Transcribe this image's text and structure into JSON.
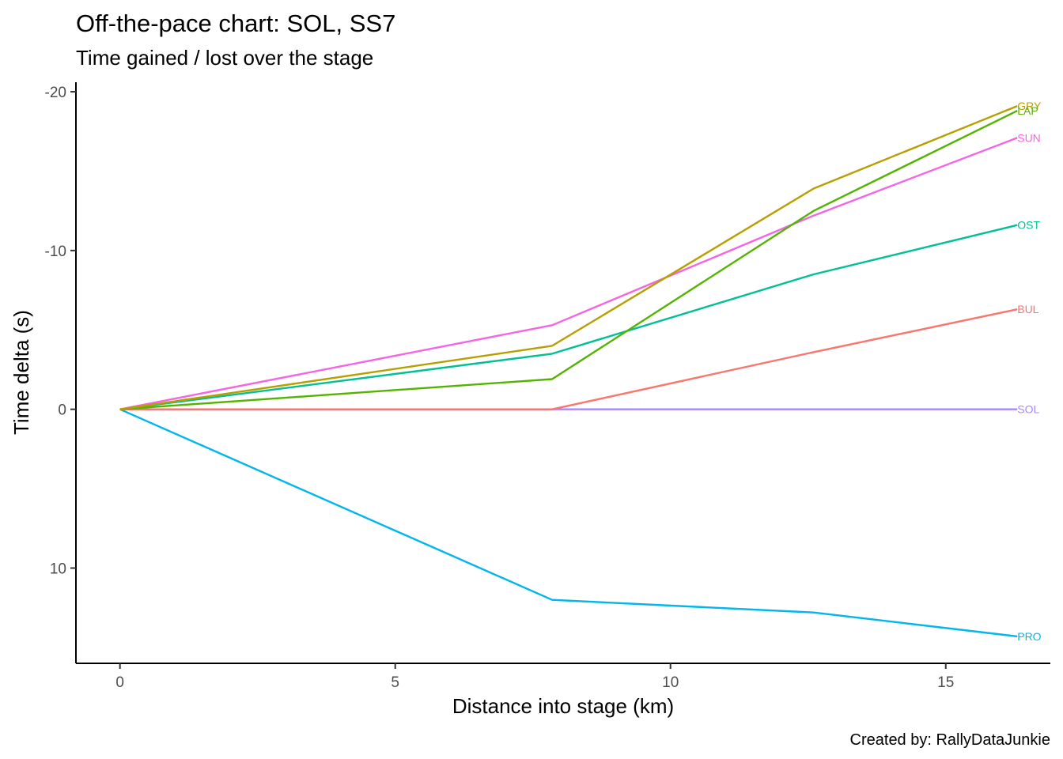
{
  "chart_data": {
    "type": "line",
    "title": "Off-the-pace chart: SOL, SS7",
    "subtitle": "Time gained / lost over the stage",
    "xlabel": "Distance into stage (km)",
    "ylabel": "Time delta (s)",
    "caption": "Created by: RallyDataJunkie",
    "xlim": [
      -0.8,
      16.9
    ],
    "ylim": [
      -20.6,
      16
    ],
    "y_reversed": true,
    "x_ticks": [
      0,
      5,
      10,
      15
    ],
    "x_tick_labels": [
      "0",
      "5",
      "10",
      "15"
    ],
    "y_ticks": [
      -20,
      -10,
      0,
      10
    ],
    "y_tick_labels": [
      "-20",
      "-10",
      "0",
      "10"
    ],
    "grid": false,
    "legend": "none (series labels at line ends)",
    "x": [
      0,
      7.85,
      12.6,
      16.3
    ],
    "series": [
      {
        "name": "GRY",
        "color": "#B79F00",
        "values": [
          0,
          -4.0,
          -13.9,
          -19.1
        ]
      },
      {
        "name": "LAP",
        "color": "#53B400",
        "values": [
          0,
          -1.9,
          -12.5,
          -18.8
        ]
      },
      {
        "name": "SUN",
        "color": "#F564E3",
        "values": [
          0,
          -5.3,
          -12.2,
          -17.1
        ]
      },
      {
        "name": "OST",
        "color": "#00C094",
        "values": [
          0,
          -3.5,
          -8.5,
          -11.6
        ]
      },
      {
        "name": "BUL",
        "color": "#F8766D",
        "values": [
          0,
          0,
          -3.6,
          -6.3
        ]
      },
      {
        "name": "SOL",
        "color": "#A58AFF",
        "values": [
          0,
          0,
          0,
          0
        ]
      },
      {
        "name": "PRO",
        "color": "#00B6EB",
        "values": [
          0,
          12.0,
          12.8,
          14.3
        ]
      }
    ]
  }
}
